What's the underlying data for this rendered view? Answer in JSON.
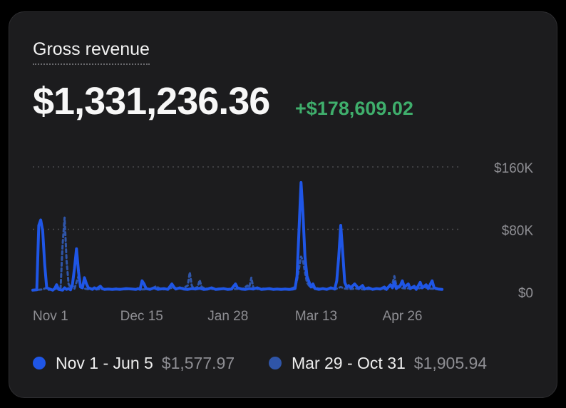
{
  "card": {
    "title": "Gross revenue",
    "amount": "$1,331,236.36",
    "delta": "+$178,609.02"
  },
  "colors": {
    "current": "#1f56e6",
    "previous": "#2f55a8",
    "delta": "#3fae6c"
  },
  "legend": [
    {
      "label": "Nov 1 - Jun 5",
      "value": "$1,577.97"
    },
    {
      "label": "Mar 29 - Oct 31",
      "value": "$1,905.94"
    }
  ],
  "chart_data": {
    "type": "line",
    "ylim": [
      0,
      160000
    ],
    "y_ticks": [
      {
        "value": 0,
        "label": "$0"
      },
      {
        "value": 80000,
        "label": "$80K"
      },
      {
        "value": 160000,
        "label": "$160K"
      }
    ],
    "x_ticks": [
      {
        "day": 0,
        "label": "Nov 1"
      },
      {
        "day": 44,
        "label": "Dec 15"
      },
      {
        "day": 88,
        "label": "Jan 28"
      },
      {
        "day": 132,
        "label": "Mar 13"
      },
      {
        "day": 176,
        "label": "Apr 26"
      }
    ],
    "grid": true,
    "x_range": [
      0,
      216
    ],
    "series": [
      {
        "name": "Nov 1 - Jun 5",
        "style": "solid",
        "points": [
          [
            0,
            2000
          ],
          [
            2,
            2500
          ],
          [
            3,
            85000
          ],
          [
            4,
            92000
          ],
          [
            5,
            78000
          ],
          [
            6,
            35000
          ],
          [
            7,
            5000
          ],
          [
            9,
            3000
          ],
          [
            10,
            2000
          ],
          [
            11,
            4000
          ],
          [
            12,
            9000
          ],
          [
            13,
            3000
          ],
          [
            15,
            2000
          ],
          [
            16,
            5000
          ],
          [
            17,
            3000
          ],
          [
            18,
            4000
          ],
          [
            19,
            2500
          ],
          [
            20,
            10000
          ],
          [
            21,
            30000
          ],
          [
            22,
            55000
          ],
          [
            23,
            26000
          ],
          [
            24,
            6000
          ],
          [
            25,
            5000
          ],
          [
            26,
            18000
          ],
          [
            27,
            10000
          ],
          [
            28,
            5000
          ],
          [
            30,
            3000
          ],
          [
            31,
            5000
          ],
          [
            32,
            3500
          ],
          [
            34,
            7000
          ],
          [
            35,
            4000
          ],
          [
            36,
            3000
          ],
          [
            38,
            3500
          ],
          [
            40,
            3000
          ],
          [
            42,
            3500
          ],
          [
            44,
            3000
          ],
          [
            47,
            4000
          ],
          [
            50,
            3500
          ],
          [
            52,
            3000
          ],
          [
            53,
            4000
          ],
          [
            54,
            3000
          ],
          [
            55,
            14000
          ],
          [
            56,
            10000
          ],
          [
            57,
            4000
          ],
          [
            59,
            3000
          ],
          [
            61,
            5000
          ],
          [
            63,
            3000
          ],
          [
            64,
            3500
          ],
          [
            66,
            4000
          ],
          [
            68,
            3000
          ],
          [
            70,
            10000
          ],
          [
            71,
            6000
          ],
          [
            72,
            3500
          ],
          [
            74,
            5000
          ],
          [
            76,
            3500
          ],
          [
            78,
            3000
          ],
          [
            80,
            4000
          ],
          [
            82,
            3500
          ],
          [
            84,
            4500
          ],
          [
            86,
            3000
          ],
          [
            88,
            3500
          ],
          [
            90,
            5000
          ],
          [
            92,
            3000
          ],
          [
            94,
            3500
          ],
          [
            96,
            4000
          ],
          [
            98,
            3000
          ],
          [
            100,
            3500
          ],
          [
            102,
            10000
          ],
          [
            103,
            5000
          ],
          [
            105,
            3500
          ],
          [
            107,
            3000
          ],
          [
            109,
            4000
          ],
          [
            111,
            3500
          ],
          [
            113,
            5000
          ],
          [
            115,
            3000
          ],
          [
            117,
            3500
          ],
          [
            119,
            4000
          ],
          [
            121,
            3000
          ],
          [
            123,
            3500
          ],
          [
            125,
            3000
          ],
          [
            127,
            3500
          ],
          [
            129,
            3000
          ],
          [
            131,
            3500
          ],
          [
            132,
            4000
          ],
          [
            133,
            20000
          ],
          [
            134,
            80000
          ],
          [
            135,
            140000
          ],
          [
            136,
            100000
          ],
          [
            137,
            45000
          ],
          [
            138,
            20000
          ],
          [
            139,
            13000
          ],
          [
            140,
            6000
          ],
          [
            141,
            10000
          ],
          [
            142,
            4000
          ],
          [
            144,
            3000
          ],
          [
            146,
            4000
          ],
          [
            148,
            3000
          ],
          [
            150,
            5000
          ],
          [
            152,
            3500
          ],
          [
            153,
            14000
          ],
          [
            154,
            45000
          ],
          [
            155,
            85000
          ],
          [
            156,
            50000
          ],
          [
            157,
            12000
          ],
          [
            158,
            6000
          ],
          [
            159,
            8000
          ],
          [
            160,
            5000
          ],
          [
            162,
            10000
          ],
          [
            164,
            4000
          ],
          [
            166,
            8000
          ],
          [
            167,
            3500
          ],
          [
            169,
            5000
          ],
          [
            171,
            3000
          ],
          [
            173,
            4000
          ],
          [
            175,
            3500
          ],
          [
            177,
            6000
          ],
          [
            178,
            3000
          ],
          [
            180,
            9000
          ],
          [
            181,
            5000
          ],
          [
            182,
            12000
          ],
          [
            183,
            4000
          ],
          [
            185,
            8000
          ],
          [
            186,
            14000
          ],
          [
            187,
            6000
          ],
          [
            189,
            10000
          ],
          [
            190,
            4000
          ],
          [
            192,
            7000
          ],
          [
            193,
            3000
          ],
          [
            195,
            12000
          ],
          [
            196,
            5000
          ],
          [
            198,
            9000
          ],
          [
            199,
            4000
          ],
          [
            201,
            14000
          ],
          [
            202,
            5000
          ],
          [
            204,
            3500
          ],
          [
            206,
            3000
          ]
        ]
      },
      {
        "name": "Mar 29 - Oct 31",
        "style": "dashed",
        "points": [
          [
            0,
            2000
          ],
          [
            3,
            2500
          ],
          [
            5,
            3000
          ],
          [
            7,
            5000
          ],
          [
            8,
            2500
          ],
          [
            10,
            3000
          ],
          [
            12,
            4000
          ],
          [
            14,
            5000
          ],
          [
            15,
            60000
          ],
          [
            16,
            95000
          ],
          [
            17,
            40000
          ],
          [
            18,
            10000
          ],
          [
            19,
            5000
          ],
          [
            20,
            8000
          ],
          [
            21,
            4000
          ],
          [
            23,
            20000
          ],
          [
            24,
            8000
          ],
          [
            26,
            4000
          ],
          [
            28,
            3000
          ],
          [
            30,
            4000
          ],
          [
            32,
            3000
          ],
          [
            35,
            3500
          ],
          [
            38,
            3000
          ],
          [
            42,
            4000
          ],
          [
            46,
            3000
          ],
          [
            50,
            3500
          ],
          [
            55,
            3000
          ],
          [
            60,
            3500
          ],
          [
            62,
            7000
          ],
          [
            64,
            4000
          ],
          [
            66,
            3000
          ],
          [
            70,
            5000
          ],
          [
            74,
            4000
          ],
          [
            76,
            5000
          ],
          [
            78,
            8000
          ],
          [
            79,
            25000
          ],
          [
            80,
            8000
          ],
          [
            81,
            4000
          ],
          [
            83,
            6000
          ],
          [
            84,
            15000
          ],
          [
            85,
            6000
          ],
          [
            87,
            4000
          ],
          [
            90,
            3500
          ],
          [
            94,
            4000
          ],
          [
            98,
            3000
          ],
          [
            102,
            3500
          ],
          [
            106,
            4000
          ],
          [
            108,
            8000
          ],
          [
            109,
            6000
          ],
          [
            110,
            18000
          ],
          [
            111,
            5000
          ],
          [
            113,
            3500
          ],
          [
            116,
            4000
          ],
          [
            120,
            3000
          ],
          [
            124,
            3500
          ],
          [
            128,
            3000
          ],
          [
            130,
            4000
          ],
          [
            132,
            6000
          ],
          [
            133,
            15000
          ],
          [
            134,
            30000
          ],
          [
            135,
            45000
          ],
          [
            136,
            40000
          ],
          [
            137,
            25000
          ],
          [
            138,
            12000
          ],
          [
            139,
            8000
          ],
          [
            140,
            6000
          ],
          [
            142,
            5000
          ],
          [
            144,
            4000
          ],
          [
            147,
            3500
          ],
          [
            150,
            4000
          ],
          [
            152,
            3000
          ],
          [
            155,
            6000
          ],
          [
            157,
            4000
          ],
          [
            160,
            3500
          ],
          [
            163,
            4000
          ],
          [
            166,
            3000
          ],
          [
            170,
            3500
          ],
          [
            174,
            4000
          ],
          [
            178,
            3000
          ],
          [
            181,
            10000
          ],
          [
            182,
            20000
          ],
          [
            183,
            8000
          ],
          [
            185,
            5000
          ],
          [
            188,
            4000
          ],
          [
            191,
            5000
          ],
          [
            194,
            4000
          ],
          [
            197,
            6000
          ],
          [
            200,
            4000
          ],
          [
            203,
            3500
          ],
          [
            206,
            3000
          ]
        ]
      }
    ]
  }
}
